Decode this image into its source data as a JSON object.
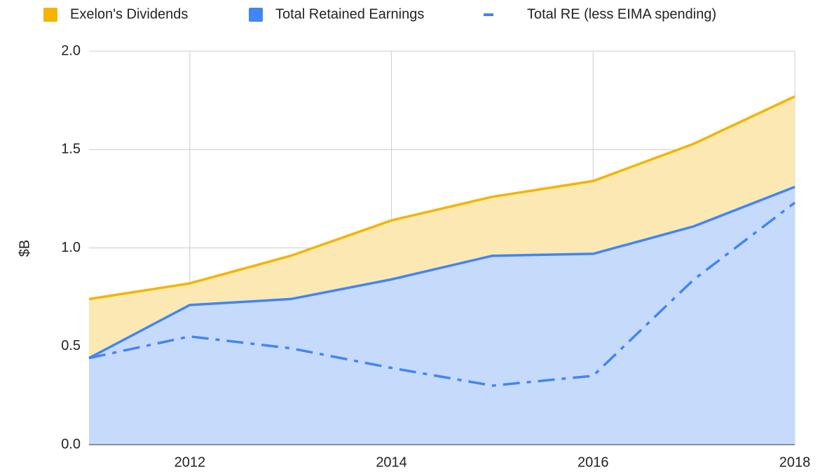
{
  "chart_data": {
    "type": "area",
    "stacked": true,
    "ylabel": "$B",
    "x": [
      2011,
      2012,
      2013,
      2014,
      2015,
      2016,
      2017,
      2018
    ],
    "xlim": [
      2011,
      2018
    ],
    "xticks": [
      2012,
      2014,
      2016,
      2018
    ],
    "ylim": [
      0,
      2
    ],
    "yticks": [
      {
        "value": 0,
        "label": "0.0"
      },
      {
        "value": 0.5,
        "label": "0.5"
      },
      {
        "value": 1,
        "label": "1.0"
      },
      {
        "value": 1.5,
        "label": "1.5"
      },
      {
        "value": 2,
        "label": "2.0"
      }
    ],
    "grid": true,
    "legend": "top",
    "series": [
      {
        "name": "Exelon's Dividends",
        "color": "#f4b400",
        "fill": "#fce8b2",
        "stack": true,
        "values": [
          0.3,
          0.11,
          0.22,
          0.3,
          0.3,
          0.37,
          0.42,
          0.46
        ]
      },
      {
        "name": "Total Retained Earnings",
        "color": "#4285f4",
        "fill": "#c6dafc",
        "stack": true,
        "values": [
          0.44,
          0.71,
          0.74,
          0.84,
          0.96,
          0.97,
          1.11,
          1.31
        ]
      },
      {
        "name": "Total RE (less EIMA spending)",
        "color": "#4285f4",
        "stack": false,
        "dash": true,
        "values": [
          0.44,
          0.55,
          0.49,
          0.39,
          0.3,
          0.35,
          0.84,
          1.23
        ]
      }
    ]
  }
}
